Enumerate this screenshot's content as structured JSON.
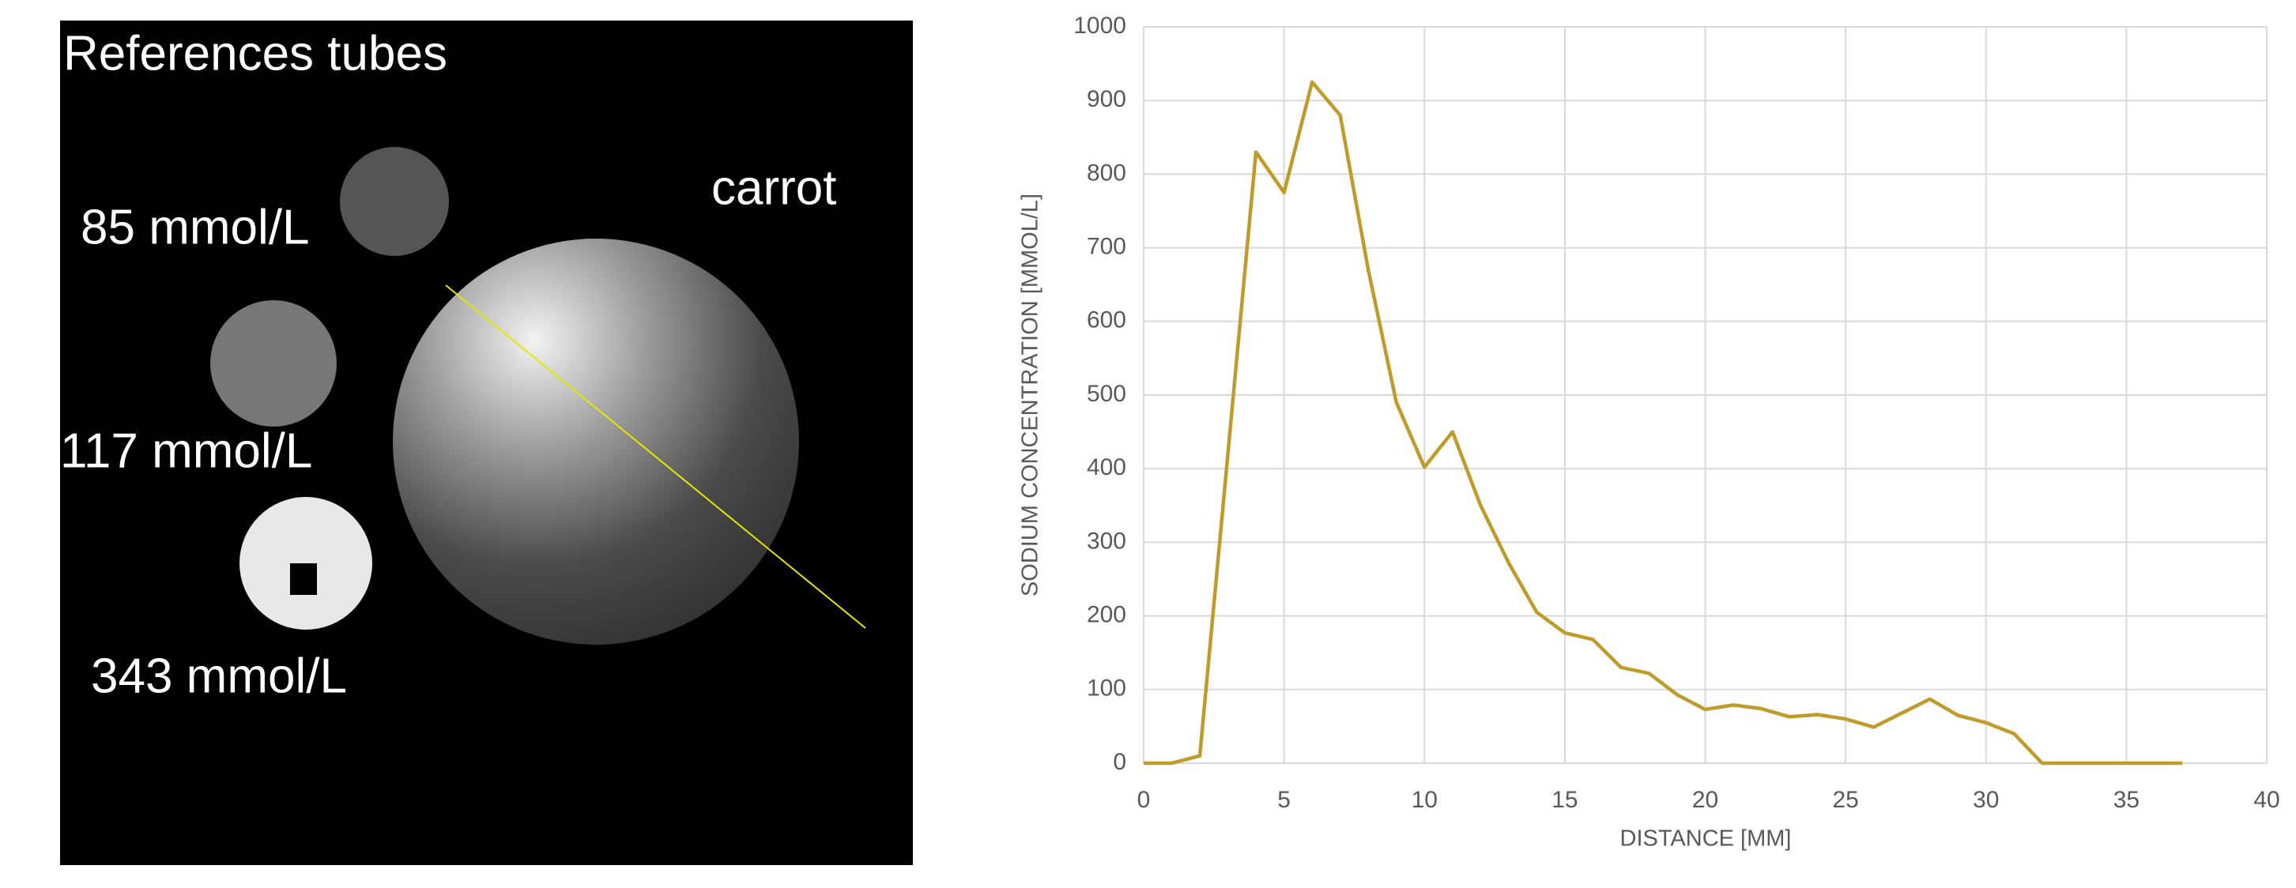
{
  "image": {
    "labels": [
      "References tubes",
      "carrot",
      "85 mmol/L",
      "117 mmol/L",
      "343 mmol/L"
    ]
  },
  "chart_data": {
    "type": "line",
    "x_label": "DISTANCE [MM]",
    "y_label": "SODIUM CONCENTRATION [MMOL/L]",
    "x": [
      0,
      1,
      2,
      3,
      4,
      5,
      6,
      7,
      8,
      9,
      10,
      11,
      12,
      13,
      14,
      15,
      16,
      17,
      18,
      19,
      20,
      21,
      22,
      23,
      24,
      25,
      26,
      27,
      28,
      29,
      30,
      31,
      32,
      33,
      34,
      35,
      36,
      37
    ],
    "values": [
      0,
      0,
      10,
      420,
      830,
      775,
      925,
      880,
      670,
      490,
      402,
      450,
      350,
      272,
      205,
      177,
      168,
      130,
      122,
      93,
      73,
      79,
      74,
      63,
      66,
      60,
      49,
      68,
      87,
      65,
      55,
      40,
      0,
      0,
      0,
      0,
      0,
      0
    ],
    "color": "#bf9b2a",
    "xlim": [
      0,
      40
    ],
    "xticks": [
      0,
      5,
      10,
      15,
      20,
      25,
      30,
      35,
      40
    ],
    "ylim": [
      0,
      1000
    ],
    "yticks": [
      0,
      100,
      200,
      300,
      400,
      500,
      600,
      700,
      800,
      900,
      1000
    ],
    "grid": true
  }
}
